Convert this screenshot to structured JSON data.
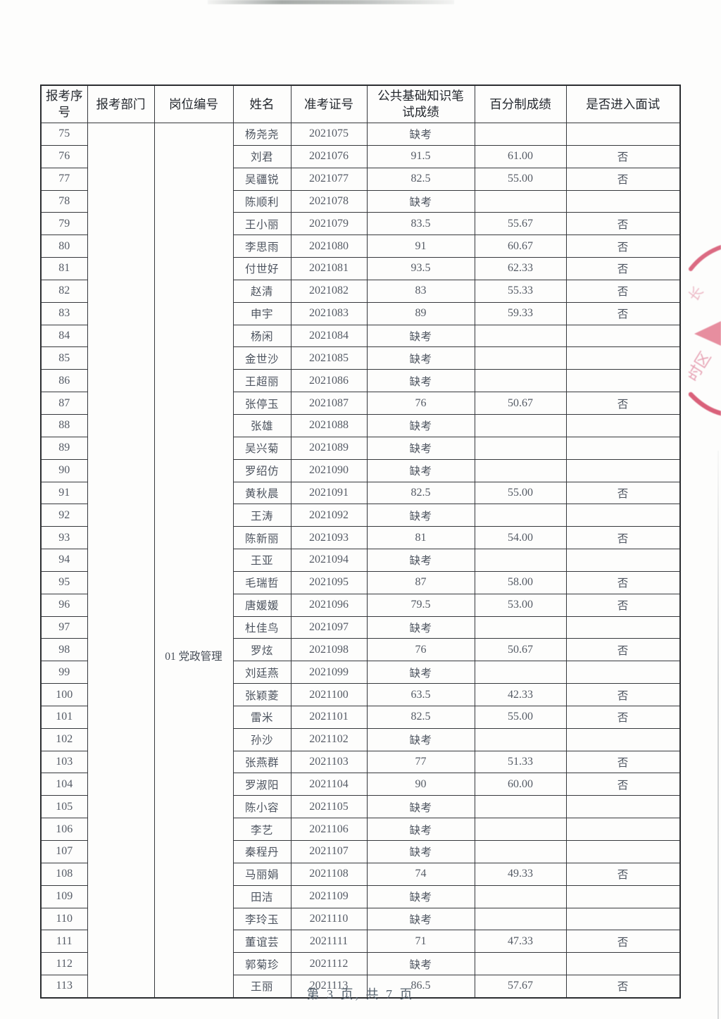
{
  "table": {
    "headers": [
      "报考序号",
      "报考部门",
      "岗位编号",
      "姓名",
      "准考证号",
      "公共基础知识笔试成绩",
      "百分制成绩",
      "是否进入面试"
    ],
    "department": "",
    "position_code": "01 党政管理",
    "absent_label": "缺考",
    "rows": [
      {
        "no": "75",
        "name": "杨尧尧",
        "ticket": "2021075",
        "score": "缺考",
        "pct": "",
        "interview": ""
      },
      {
        "no": "76",
        "name": "刘君",
        "ticket": "2021076",
        "score": "91.5",
        "pct": "61.00",
        "interview": "否"
      },
      {
        "no": "77",
        "name": "吴疆锐",
        "ticket": "2021077",
        "score": "82.5",
        "pct": "55.00",
        "interview": "否"
      },
      {
        "no": "78",
        "name": "陈顺利",
        "ticket": "2021078",
        "score": "缺考",
        "pct": "",
        "interview": ""
      },
      {
        "no": "79",
        "name": "王小丽",
        "ticket": "2021079",
        "score": "83.5",
        "pct": "55.67",
        "interview": "否"
      },
      {
        "no": "80",
        "name": "李思雨",
        "ticket": "2021080",
        "score": "91",
        "pct": "60.67",
        "interview": "否"
      },
      {
        "no": "81",
        "name": "付世好",
        "ticket": "2021081",
        "score": "93.5",
        "pct": "62.33",
        "interview": "否"
      },
      {
        "no": "82",
        "name": "赵清",
        "ticket": "2021082",
        "score": "83",
        "pct": "55.33",
        "interview": "否"
      },
      {
        "no": "83",
        "name": "申宇",
        "ticket": "2021083",
        "score": "89",
        "pct": "59.33",
        "interview": "否"
      },
      {
        "no": "84",
        "name": "杨闲",
        "ticket": "2021084",
        "score": "缺考",
        "pct": "",
        "interview": ""
      },
      {
        "no": "85",
        "name": "金世沙",
        "ticket": "2021085",
        "score": "缺考",
        "pct": "",
        "interview": ""
      },
      {
        "no": "86",
        "name": "王超丽",
        "ticket": "2021086",
        "score": "缺考",
        "pct": "",
        "interview": ""
      },
      {
        "no": "87",
        "name": "张停玉",
        "ticket": "2021087",
        "score": "76",
        "pct": "50.67",
        "interview": "否"
      },
      {
        "no": "88",
        "name": "张雄",
        "ticket": "2021088",
        "score": "缺考",
        "pct": "",
        "interview": ""
      },
      {
        "no": "89",
        "name": "吴兴菊",
        "ticket": "2021089",
        "score": "缺考",
        "pct": "",
        "interview": ""
      },
      {
        "no": "90",
        "name": "罗绍仿",
        "ticket": "2021090",
        "score": "缺考",
        "pct": "",
        "interview": ""
      },
      {
        "no": "91",
        "name": "黄秋晨",
        "ticket": "2021091",
        "score": "82.5",
        "pct": "55.00",
        "interview": "否"
      },
      {
        "no": "92",
        "name": "王涛",
        "ticket": "2021092",
        "score": "缺考",
        "pct": "",
        "interview": ""
      },
      {
        "no": "93",
        "name": "陈新丽",
        "ticket": "2021093",
        "score": "81",
        "pct": "54.00",
        "interview": "否"
      },
      {
        "no": "94",
        "name": "王亚",
        "ticket": "2021094",
        "score": "缺考",
        "pct": "",
        "interview": ""
      },
      {
        "no": "95",
        "name": "毛瑞哲",
        "ticket": "2021095",
        "score": "87",
        "pct": "58.00",
        "interview": "否"
      },
      {
        "no": "96",
        "name": "唐媛媛",
        "ticket": "2021096",
        "score": "79.5",
        "pct": "53.00",
        "interview": "否"
      },
      {
        "no": "97",
        "name": "杜佳鸟",
        "ticket": "2021097",
        "score": "缺考",
        "pct": "",
        "interview": ""
      },
      {
        "no": "98",
        "name": "罗炫",
        "ticket": "2021098",
        "score": "76",
        "pct": "50.67",
        "interview": "否"
      },
      {
        "no": "99",
        "name": "刘廷燕",
        "ticket": "2021099",
        "score": "缺考",
        "pct": "",
        "interview": ""
      },
      {
        "no": "100",
        "name": "张颖菱",
        "ticket": "2021100",
        "score": "63.5",
        "pct": "42.33",
        "interview": "否"
      },
      {
        "no": "101",
        "name": "雷米",
        "ticket": "2021101",
        "score": "82.5",
        "pct": "55.00",
        "interview": "否"
      },
      {
        "no": "102",
        "name": "孙沙",
        "ticket": "2021102",
        "score": "缺考",
        "pct": "",
        "interview": ""
      },
      {
        "no": "103",
        "name": "张燕群",
        "ticket": "2021103",
        "score": "77",
        "pct": "51.33",
        "interview": "否"
      },
      {
        "no": "104",
        "name": "罗淑阳",
        "ticket": "2021104",
        "score": "90",
        "pct": "60.00",
        "interview": "否"
      },
      {
        "no": "105",
        "name": "陈小容",
        "ticket": "2021105",
        "score": "缺考",
        "pct": "",
        "interview": ""
      },
      {
        "no": "106",
        "name": "李艺",
        "ticket": "2021106",
        "score": "缺考",
        "pct": "",
        "interview": ""
      },
      {
        "no": "107",
        "name": "秦程丹",
        "ticket": "2021107",
        "score": "缺考",
        "pct": "",
        "interview": ""
      },
      {
        "no": "108",
        "name": "马丽娟",
        "ticket": "2021108",
        "score": "74",
        "pct": "49.33",
        "interview": "否"
      },
      {
        "no": "109",
        "name": "田洁",
        "ticket": "2021109",
        "score": "缺考",
        "pct": "",
        "interview": ""
      },
      {
        "no": "110",
        "name": "李玲玉",
        "ticket": "2021110",
        "score": "缺考",
        "pct": "",
        "interview": ""
      },
      {
        "no": "111",
        "name": "董谊芸",
        "ticket": "2021111",
        "score": "71",
        "pct": "47.33",
        "interview": "否"
      },
      {
        "no": "112",
        "name": "郭菊珍",
        "ticket": "2021112",
        "score": "缺考",
        "pct": "",
        "interview": ""
      },
      {
        "no": "113",
        "name": "王丽",
        "ticket": "2021113",
        "score": "86.5",
        "pct": "57.67",
        "interview": "否"
      }
    ]
  },
  "footer": {
    "page_indicator": "第 3 页, 共 7 页"
  },
  "stamp": {
    "color": "#d5506c",
    "accent_color": "#df6880"
  }
}
